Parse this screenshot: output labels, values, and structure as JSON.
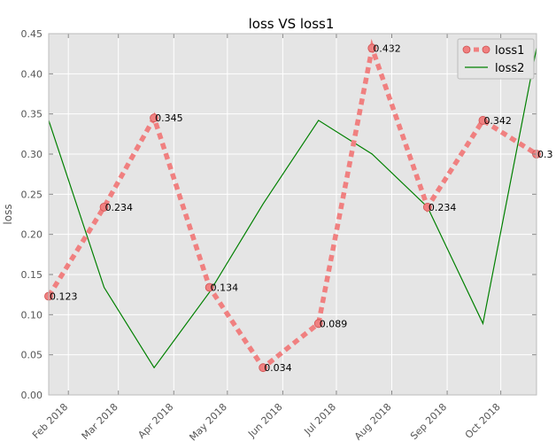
{
  "chart_data": {
    "type": "line",
    "title": "loss VS loss1",
    "xlabel": "",
    "ylabel": "loss",
    "ylim": [
      0.0,
      0.45
    ],
    "xlim": [
      "2018-01-21",
      "2018-10-21"
    ],
    "x_ticks": [
      "2018-02-01",
      "2018-03-01",
      "2018-04-01",
      "2018-05-01",
      "2018-06-01",
      "2018-07-01",
      "2018-08-01",
      "2018-09-01",
      "2018-10-01"
    ],
    "x_tick_labels": [
      "Feb 2018",
      "Mar 2018",
      "Apr 2018",
      "May 2018",
      "Jun 2018",
      "Jul 2018",
      "Aug 2018",
      "Sep 2018",
      "Oct 2018"
    ],
    "y_ticks": [
      0.0,
      0.05,
      0.1,
      0.15,
      0.2,
      0.25,
      0.3,
      0.35,
      0.4,
      0.45
    ],
    "y_tick_labels": [
      "0.00",
      "0.05",
      "0.10",
      "0.15",
      "0.20",
      "0.25",
      "0.30",
      "0.35",
      "0.40",
      "0.45"
    ],
    "grid": true,
    "legend_position": "top-right",
    "x": [
      "2018-01-21",
      "2018-02-21",
      "2018-03-21",
      "2018-04-21",
      "2018-05-21",
      "2018-06-21",
      "2018-07-21",
      "2018-08-21",
      "2018-09-21",
      "2018-10-21"
    ],
    "series": [
      {
        "name": "loss1",
        "values": [
          0.123,
          0.234,
          0.345,
          0.134,
          0.034,
          0.089,
          0.432,
          0.234,
          0.342,
          0.3
        ],
        "color": "#f08080",
        "style": "dotted thick with circle markers"
      },
      {
        "name": "loss2",
        "values": [
          0.342,
          0.134,
          0.034,
          0.128,
          0.238,
          0.342,
          0.3,
          0.234,
          0.089,
          0.432
        ],
        "color": "#008000",
        "style": "solid thin"
      }
    ],
    "point_labels": {
      "series": "loss1",
      "texts": [
        "0.123",
        "0.234",
        "0.345",
        "0.134",
        "0.034",
        "0.089",
        "0.432",
        "0.234",
        "0.342",
        "0.3"
      ]
    },
    "colors": {
      "plot_background": "#e5e5e5",
      "grid": "#ffffff",
      "frame": "#bcbcbc"
    }
  }
}
